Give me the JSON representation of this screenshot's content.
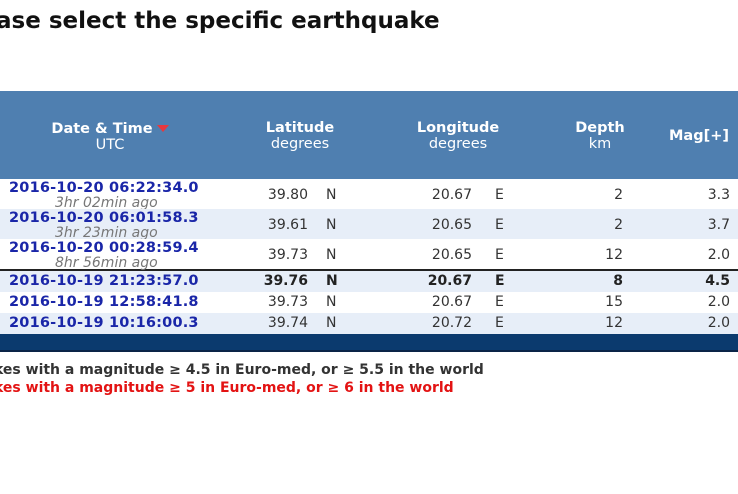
{
  "page": {
    "title": "ase select the specific earthquake"
  },
  "table": {
    "headers": {
      "date": {
        "label": "Date & Time",
        "sub": "UTC"
      },
      "lat": {
        "label": "Latitude",
        "sub": "degrees"
      },
      "lon": {
        "label": "Longitude",
        "sub": "degrees"
      },
      "depth": {
        "label": "Depth",
        "sub": "km"
      },
      "mag": {
        "label": "Mag[+]"
      }
    },
    "rows": [
      {
        "datetime": "2016-10-20   06:22:34.0",
        "ago": "3hr 02min ago",
        "lat": "39.80",
        "ns": "N",
        "lon": "20.67",
        "ew": "E",
        "depth": "2",
        "mag": "3.3"
      },
      {
        "datetime": "2016-10-20   06:01:58.3",
        "ago": "3hr 23min ago",
        "lat": "39.61",
        "ns": "N",
        "lon": "20.65",
        "ew": "E",
        "depth": "2",
        "mag": "3.7"
      },
      {
        "datetime": "2016-10-20   00:28:59.4",
        "ago": "8hr 56min ago",
        "lat": "39.73",
        "ns": "N",
        "lon": "20.65",
        "ew": "E",
        "depth": "12",
        "mag": "2.0"
      },
      {
        "datetime": "2016-10-19   21:23:57.0",
        "lat": "39.76",
        "ns": "N",
        "lon": "20.67",
        "ew": "E",
        "depth": "8",
        "mag": "4.5"
      },
      {
        "datetime": "2016-10-19   12:58:41.8",
        "lat": "39.73",
        "ns": "N",
        "lon": "20.67",
        "ew": "E",
        "depth": "15",
        "mag": "2.0"
      },
      {
        "datetime": "2016-10-19   10:16:00.3",
        "lat": "39.74",
        "ns": "N",
        "lon": "20.72",
        "ew": "E",
        "depth": "12",
        "mag": "2.0"
      }
    ]
  },
  "legend": {
    "line1": "kes with a magnitude ≥ 4.5 in Euro-med, or ≥ 5.5 in the world",
    "line2": "kes with a magnitude ≥ 5 in Euro-med, or ≥ 6 in the world"
  },
  "colors": {
    "header_bg": "#4f7fb0",
    "datetime": "#1a26a8",
    "footer_bar": "#0b3a6e",
    "sort_arrow": "#e8383d",
    "legend_red": "#e31313"
  },
  "icons": {
    "sort": "sort-down-triangle-icon"
  }
}
